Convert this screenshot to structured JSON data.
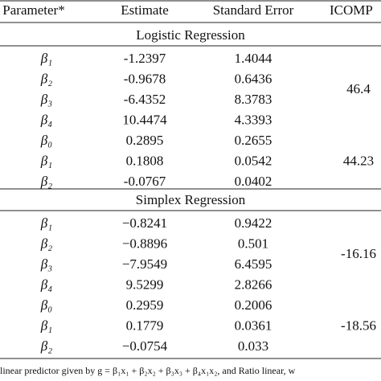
{
  "table": {
    "header": [
      "Parameter*",
      "Estimate",
      "Standard Error",
      "ICOMP"
    ],
    "sections": [
      {
        "title": "Logistic Regression",
        "groups": [
          {
            "icomp": "46.4",
            "rows": [
              [
                "β₁",
                "-1.2397",
                "1.4044"
              ],
              [
                "β₂",
                "-0.9678",
                "0.6436"
              ],
              [
                "β₃",
                "-6.4352",
                "8.3783"
              ],
              [
                "β₄",
                "10.4474",
                "4.3393"
              ]
            ]
          },
          {
            "icomp": "44.23",
            "rows": [
              [
                "β₀",
                "0.2895",
                "0.2655"
              ],
              [
                "β₁",
                "0.1808",
                "0.0542"
              ],
              [
                "β₂",
                "-0.0767",
                "0.0402"
              ]
            ]
          }
        ]
      },
      {
        "title": "Simplex Regression",
        "groups": [
          {
            "icomp": "-16.16",
            "rows": [
              [
                "β₁",
                "−0.8241",
                "0.9422"
              ],
              [
                "β₂",
                "−0.8896",
                "0.501"
              ],
              [
                "β₃",
                "−7.9549",
                "6.4595"
              ],
              [
                "β₄",
                "9.5299",
                "2.8266"
              ]
            ]
          },
          {
            "icomp": "-18.56",
            "rows": [
              [
                "β₀",
                "0.2959",
                "0.2006"
              ],
              [
                "β₁",
                "0.1779",
                "0.0361"
              ],
              [
                "β₂",
                "−0.0754",
                "0.033"
              ]
            ]
          }
        ]
      }
    ],
    "footnote": "linear predictor given by g = β₁x₁ + β₂x₂ + β₃x₃ + β₄x₁x₂, and Ratio linear, w"
  }
}
